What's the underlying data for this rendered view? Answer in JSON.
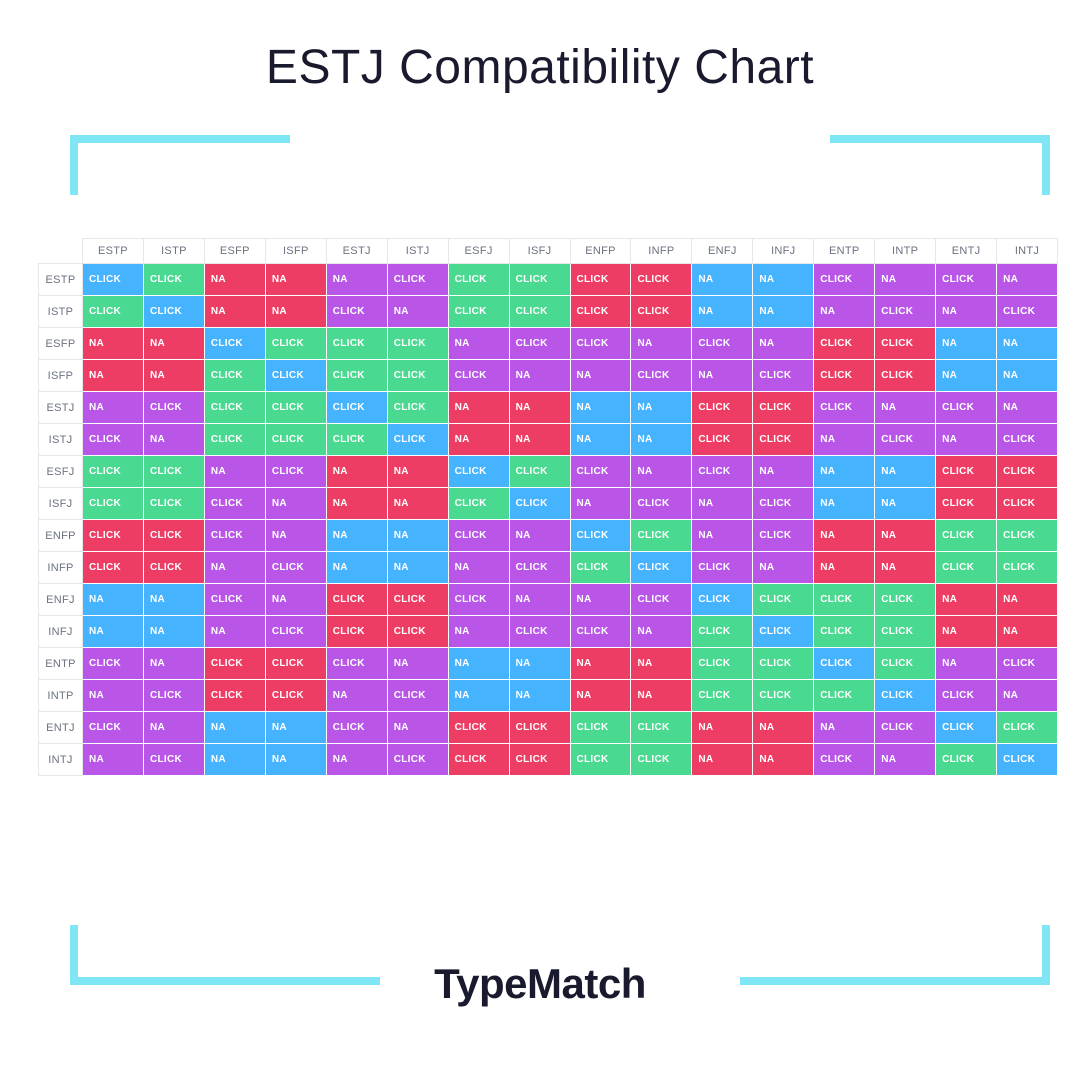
{
  "title": "ESTJ Compatibility Chart",
  "brand": "TypeMatch",
  "colors": {
    "blue": "#46b3ff",
    "green": "#4ad991",
    "purple": "#b956e8",
    "red": "#ee3d64",
    "border": "#e5e7eb",
    "header_text": "#6b7280",
    "frame": "#7ee6f5",
    "title_text": "#1a1a2e"
  },
  "cell_labels": {
    "click": "CLICK",
    "na": "NA"
  },
  "types": [
    "ESTP",
    "ISTP",
    "ESFP",
    "ISFP",
    "ESTJ",
    "ISTJ",
    "ESFJ",
    "ISFJ",
    "ENFP",
    "INFP",
    "ENFJ",
    "INFJ",
    "ENTP",
    "INTP",
    "ENTJ",
    "INTJ"
  ],
  "grid": [
    [
      [
        "CLICK",
        "blue"
      ],
      [
        "CLICK",
        "green"
      ],
      [
        "NA",
        "red"
      ],
      [
        "NA",
        "red"
      ],
      [
        "NA",
        "purple"
      ],
      [
        "CLICK",
        "purple"
      ],
      [
        "CLICK",
        "green"
      ],
      [
        "CLICK",
        "green"
      ],
      [
        "CLICK",
        "red"
      ],
      [
        "CLICK",
        "red"
      ],
      [
        "NA",
        "blue"
      ],
      [
        "NA",
        "blue"
      ],
      [
        "CLICK",
        "purple"
      ],
      [
        "NA",
        "purple"
      ],
      [
        "CLICK",
        "purple"
      ],
      [
        "NA",
        "purple"
      ]
    ],
    [
      [
        "CLICK",
        "green"
      ],
      [
        "CLICK",
        "blue"
      ],
      [
        "NA",
        "red"
      ],
      [
        "NA",
        "red"
      ],
      [
        "CLICK",
        "purple"
      ],
      [
        "NA",
        "purple"
      ],
      [
        "CLICK",
        "green"
      ],
      [
        "CLICK",
        "green"
      ],
      [
        "CLICK",
        "red"
      ],
      [
        "CLICK",
        "red"
      ],
      [
        "NA",
        "blue"
      ],
      [
        "NA",
        "blue"
      ],
      [
        "NA",
        "purple"
      ],
      [
        "CLICK",
        "purple"
      ],
      [
        "NA",
        "purple"
      ],
      [
        "CLICK",
        "purple"
      ]
    ],
    [
      [
        "NA",
        "red"
      ],
      [
        "NA",
        "red"
      ],
      [
        "CLICK",
        "blue"
      ],
      [
        "CLICK",
        "green"
      ],
      [
        "CLICK",
        "green"
      ],
      [
        "CLICK",
        "green"
      ],
      [
        "NA",
        "purple"
      ],
      [
        "CLICK",
        "purple"
      ],
      [
        "CLICK",
        "purple"
      ],
      [
        "NA",
        "purple"
      ],
      [
        "CLICK",
        "purple"
      ],
      [
        "NA",
        "purple"
      ],
      [
        "CLICK",
        "red"
      ],
      [
        "CLICK",
        "red"
      ],
      [
        "NA",
        "blue"
      ],
      [
        "NA",
        "blue"
      ]
    ],
    [
      [
        "NA",
        "red"
      ],
      [
        "NA",
        "red"
      ],
      [
        "CLICK",
        "green"
      ],
      [
        "CLICK",
        "blue"
      ],
      [
        "CLICK",
        "green"
      ],
      [
        "CLICK",
        "green"
      ],
      [
        "CLICK",
        "purple"
      ],
      [
        "NA",
        "purple"
      ],
      [
        "NA",
        "purple"
      ],
      [
        "CLICK",
        "purple"
      ],
      [
        "NA",
        "purple"
      ],
      [
        "CLICK",
        "purple"
      ],
      [
        "CLICK",
        "red"
      ],
      [
        "CLICK",
        "red"
      ],
      [
        "NA",
        "blue"
      ],
      [
        "NA",
        "blue"
      ]
    ],
    [
      [
        "NA",
        "purple"
      ],
      [
        "CLICK",
        "purple"
      ],
      [
        "CLICK",
        "green"
      ],
      [
        "CLICK",
        "green"
      ],
      [
        "CLICK",
        "blue"
      ],
      [
        "CLICK",
        "green"
      ],
      [
        "NA",
        "red"
      ],
      [
        "NA",
        "red"
      ],
      [
        "NA",
        "blue"
      ],
      [
        "NA",
        "blue"
      ],
      [
        "CLICK",
        "red"
      ],
      [
        "CLICK",
        "red"
      ],
      [
        "CLICK",
        "purple"
      ],
      [
        "NA",
        "purple"
      ],
      [
        "CLICK",
        "purple"
      ],
      [
        "NA",
        "purple"
      ]
    ],
    [
      [
        "CLICK",
        "purple"
      ],
      [
        "NA",
        "purple"
      ],
      [
        "CLICK",
        "green"
      ],
      [
        "CLICK",
        "green"
      ],
      [
        "CLICK",
        "green"
      ],
      [
        "CLICK",
        "blue"
      ],
      [
        "NA",
        "red"
      ],
      [
        "NA",
        "red"
      ],
      [
        "NA",
        "blue"
      ],
      [
        "NA",
        "blue"
      ],
      [
        "CLICK",
        "red"
      ],
      [
        "CLICK",
        "red"
      ],
      [
        "NA",
        "purple"
      ],
      [
        "CLICK",
        "purple"
      ],
      [
        "NA",
        "purple"
      ],
      [
        "CLICK",
        "purple"
      ]
    ],
    [
      [
        "CLICK",
        "green"
      ],
      [
        "CLICK",
        "green"
      ],
      [
        "NA",
        "purple"
      ],
      [
        "CLICK",
        "purple"
      ],
      [
        "NA",
        "red"
      ],
      [
        "NA",
        "red"
      ],
      [
        "CLICK",
        "blue"
      ],
      [
        "CLICK",
        "green"
      ],
      [
        "CLICK",
        "purple"
      ],
      [
        "NA",
        "purple"
      ],
      [
        "CLICK",
        "purple"
      ],
      [
        "NA",
        "purple"
      ],
      [
        "NA",
        "blue"
      ],
      [
        "NA",
        "blue"
      ],
      [
        "CLICK",
        "red"
      ],
      [
        "CLICK",
        "red"
      ]
    ],
    [
      [
        "CLICK",
        "green"
      ],
      [
        "CLICK",
        "green"
      ],
      [
        "CLICK",
        "purple"
      ],
      [
        "NA",
        "purple"
      ],
      [
        "NA",
        "red"
      ],
      [
        "NA",
        "red"
      ],
      [
        "CLICK",
        "green"
      ],
      [
        "CLICK",
        "blue"
      ],
      [
        "NA",
        "purple"
      ],
      [
        "CLICK",
        "purple"
      ],
      [
        "NA",
        "purple"
      ],
      [
        "CLICK",
        "purple"
      ],
      [
        "NA",
        "blue"
      ],
      [
        "NA",
        "blue"
      ],
      [
        "CLICK",
        "red"
      ],
      [
        "CLICK",
        "red"
      ]
    ],
    [
      [
        "CLICK",
        "red"
      ],
      [
        "CLICK",
        "red"
      ],
      [
        "CLICK",
        "purple"
      ],
      [
        "NA",
        "purple"
      ],
      [
        "NA",
        "blue"
      ],
      [
        "NA",
        "blue"
      ],
      [
        "CLICK",
        "purple"
      ],
      [
        "NA",
        "purple"
      ],
      [
        "CLICK",
        "blue"
      ],
      [
        "CLICK",
        "green"
      ],
      [
        "NA",
        "purple"
      ],
      [
        "CLICK",
        "purple"
      ],
      [
        "NA",
        "red"
      ],
      [
        "NA",
        "red"
      ],
      [
        "CLICK",
        "green"
      ],
      [
        "CLICK",
        "green"
      ]
    ],
    [
      [
        "CLICK",
        "red"
      ],
      [
        "CLICK",
        "red"
      ],
      [
        "NA",
        "purple"
      ],
      [
        "CLICK",
        "purple"
      ],
      [
        "NA",
        "blue"
      ],
      [
        "NA",
        "blue"
      ],
      [
        "NA",
        "purple"
      ],
      [
        "CLICK",
        "purple"
      ],
      [
        "CLICK",
        "green"
      ],
      [
        "CLICK",
        "blue"
      ],
      [
        "CLICK",
        "purple"
      ],
      [
        "NA",
        "purple"
      ],
      [
        "NA",
        "red"
      ],
      [
        "NA",
        "red"
      ],
      [
        "CLICK",
        "green"
      ],
      [
        "CLICK",
        "green"
      ]
    ],
    [
      [
        "NA",
        "blue"
      ],
      [
        "NA",
        "blue"
      ],
      [
        "CLICK",
        "purple"
      ],
      [
        "NA",
        "purple"
      ],
      [
        "CLICK",
        "red"
      ],
      [
        "CLICK",
        "red"
      ],
      [
        "CLICK",
        "purple"
      ],
      [
        "NA",
        "purple"
      ],
      [
        "NA",
        "purple"
      ],
      [
        "CLICK",
        "purple"
      ],
      [
        "CLICK",
        "blue"
      ],
      [
        "CLICK",
        "green"
      ],
      [
        "CLICK",
        "green"
      ],
      [
        "CLICK",
        "green"
      ],
      [
        "NA",
        "red"
      ],
      [
        "NA",
        "red"
      ]
    ],
    [
      [
        "NA",
        "blue"
      ],
      [
        "NA",
        "blue"
      ],
      [
        "NA",
        "purple"
      ],
      [
        "CLICK",
        "purple"
      ],
      [
        "CLICK",
        "red"
      ],
      [
        "CLICK",
        "red"
      ],
      [
        "NA",
        "purple"
      ],
      [
        "CLICK",
        "purple"
      ],
      [
        "CLICK",
        "purple"
      ],
      [
        "NA",
        "purple"
      ],
      [
        "CLICK",
        "green"
      ],
      [
        "CLICK",
        "blue"
      ],
      [
        "CLICK",
        "green"
      ],
      [
        "CLICK",
        "green"
      ],
      [
        "NA",
        "red"
      ],
      [
        "NA",
        "red"
      ]
    ],
    [
      [
        "CLICK",
        "purple"
      ],
      [
        "NA",
        "purple"
      ],
      [
        "CLICK",
        "red"
      ],
      [
        "CLICK",
        "red"
      ],
      [
        "CLICK",
        "purple"
      ],
      [
        "NA",
        "purple"
      ],
      [
        "NA",
        "blue"
      ],
      [
        "NA",
        "blue"
      ],
      [
        "NA",
        "red"
      ],
      [
        "NA",
        "red"
      ],
      [
        "CLICK",
        "green"
      ],
      [
        "CLICK",
        "green"
      ],
      [
        "CLICK",
        "blue"
      ],
      [
        "CLICK",
        "green"
      ],
      [
        "NA",
        "purple"
      ],
      [
        "CLICK",
        "purple"
      ]
    ],
    [
      [
        "NA",
        "purple"
      ],
      [
        "CLICK",
        "purple"
      ],
      [
        "CLICK",
        "red"
      ],
      [
        "CLICK",
        "red"
      ],
      [
        "NA",
        "purple"
      ],
      [
        "CLICK",
        "purple"
      ],
      [
        "NA",
        "blue"
      ],
      [
        "NA",
        "blue"
      ],
      [
        "NA",
        "red"
      ],
      [
        "NA",
        "red"
      ],
      [
        "CLICK",
        "green"
      ],
      [
        "CLICK",
        "green"
      ],
      [
        "CLICK",
        "green"
      ],
      [
        "CLICK",
        "blue"
      ],
      [
        "CLICK",
        "purple"
      ],
      [
        "NA",
        "purple"
      ]
    ],
    [
      [
        "CLICK",
        "purple"
      ],
      [
        "NA",
        "purple"
      ],
      [
        "NA",
        "blue"
      ],
      [
        "NA",
        "blue"
      ],
      [
        "CLICK",
        "purple"
      ],
      [
        "NA",
        "purple"
      ],
      [
        "CLICK",
        "red"
      ],
      [
        "CLICK",
        "red"
      ],
      [
        "CLICK",
        "green"
      ],
      [
        "CLICK",
        "green"
      ],
      [
        "NA",
        "red"
      ],
      [
        "NA",
        "red"
      ],
      [
        "NA",
        "purple"
      ],
      [
        "CLICK",
        "purple"
      ],
      [
        "CLICK",
        "blue"
      ],
      [
        "CLICK",
        "green"
      ]
    ],
    [
      [
        "NA",
        "purple"
      ],
      [
        "CLICK",
        "purple"
      ],
      [
        "NA",
        "blue"
      ],
      [
        "NA",
        "blue"
      ],
      [
        "NA",
        "purple"
      ],
      [
        "CLICK",
        "purple"
      ],
      [
        "CLICK",
        "red"
      ],
      [
        "CLICK",
        "red"
      ],
      [
        "CLICK",
        "green"
      ],
      [
        "CLICK",
        "green"
      ],
      [
        "NA",
        "red"
      ],
      [
        "NA",
        "red"
      ],
      [
        "CLICK",
        "purple"
      ],
      [
        "NA",
        "purple"
      ],
      [
        "CLICK",
        "green"
      ],
      [
        "CLICK",
        "blue"
      ]
    ]
  ]
}
